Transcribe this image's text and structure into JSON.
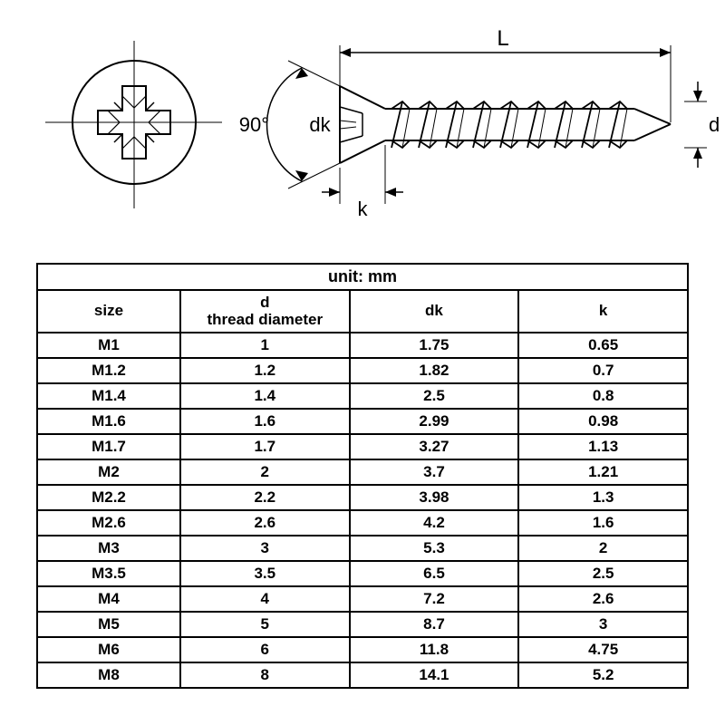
{
  "diagram": {
    "angle_label": "90°",
    "dk_label": "dk",
    "k_label": "k",
    "L_label": "L",
    "d_label": "d",
    "stroke_color": "#000000",
    "stroke_width": 1.5,
    "font_size": 22
  },
  "table": {
    "unit_label": "unit: mm",
    "columns": [
      "size",
      "d\nthread diameter",
      "dk",
      "k"
    ],
    "rows": [
      [
        "M1",
        "1",
        "1.75",
        "0.65"
      ],
      [
        "M1.2",
        "1.2",
        "1.82",
        "0.7"
      ],
      [
        "M1.4",
        "1.4",
        "2.5",
        "0.8"
      ],
      [
        "M1.6",
        "1.6",
        "2.99",
        "0.98"
      ],
      [
        "M1.7",
        "1.7",
        "3.27",
        "1.13"
      ],
      [
        "M2",
        "2",
        "3.7",
        "1.21"
      ],
      [
        "M2.2",
        "2.2",
        "3.98",
        "1.3"
      ],
      [
        "M2.6",
        "2.6",
        "4.2",
        "1.6"
      ],
      [
        "M3",
        "3",
        "5.3",
        "2"
      ],
      [
        "M3.5",
        "3.5",
        "6.5",
        "2.5"
      ],
      [
        "M4",
        "4",
        "7.2",
        "2.6"
      ],
      [
        "M5",
        "5",
        "8.7",
        "3"
      ],
      [
        "M6",
        "6",
        "11.8",
        "4.75"
      ],
      [
        "M8",
        "8",
        "14.1",
        "5.2"
      ]
    ],
    "border_color": "#000000",
    "header_fontsize": 17,
    "cell_fontsize": 17
  }
}
